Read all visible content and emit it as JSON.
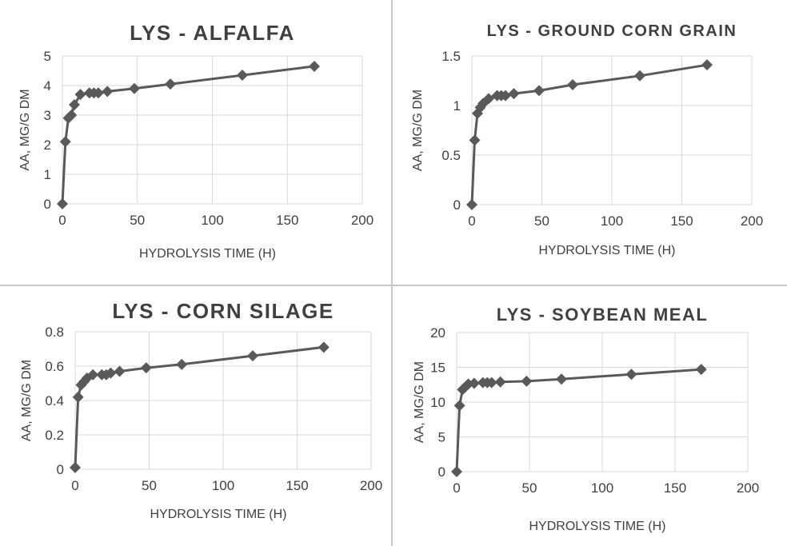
{
  "chart_data": [
    {
      "type": "line",
      "title": "LYS - ALFALFA",
      "xlabel": "HYDROLYSIS TIME (H)",
      "ylabel": "AA, MG/G DM",
      "xlim": [
        0,
        200
      ],
      "ylim": [
        0,
        5
      ],
      "xticks": [
        0,
        50,
        100,
        150,
        200
      ],
      "yticks": [
        0,
        1,
        2,
        3,
        4,
        5
      ],
      "grid": true,
      "series": [
        {
          "x": [
            0,
            2,
            4,
            6,
            8,
            12,
            18,
            21,
            24,
            30,
            48,
            72,
            120,
            168
          ],
          "y": [
            0,
            2.1,
            2.9,
            3.0,
            3.35,
            3.7,
            3.75,
            3.75,
            3.75,
            3.8,
            3.9,
            4.05,
            4.35,
            4.65
          ]
        }
      ]
    },
    {
      "type": "line",
      "title": "LYS - GROUND CORN GRAIN",
      "xlabel": "HYDROLYSIS TIME (H)",
      "ylabel": "AA, MG/G DM",
      "xlim": [
        0,
        200
      ],
      "ylim": [
        0,
        1.5
      ],
      "xticks": [
        0,
        50,
        100,
        150,
        200
      ],
      "yticks": [
        0,
        0.5,
        1,
        1.5
      ],
      "grid": true,
      "series": [
        {
          "x": [
            0,
            2,
            4,
            6,
            8,
            12,
            18,
            21,
            24,
            30,
            48,
            72,
            120,
            168
          ],
          "y": [
            0,
            0.65,
            0.92,
            0.98,
            1.02,
            1.07,
            1.1,
            1.1,
            1.1,
            1.12,
            1.15,
            1.21,
            1.3,
            1.41
          ]
        }
      ]
    },
    {
      "type": "line",
      "title": "LYS - CORN SILAGE",
      "xlabel": "HYDROLYSIS TIME (H)",
      "ylabel": "AA, MG/G DM",
      "xlim": [
        0,
        200
      ],
      "ylim": [
        0,
        0.8
      ],
      "xticks": [
        0,
        50,
        100,
        150,
        200
      ],
      "yticks": [
        0,
        0.2,
        0.4,
        0.6,
        0.8
      ],
      "grid": true,
      "series": [
        {
          "x": [
            0,
            2,
            4,
            6,
            8,
            12,
            18,
            21,
            24,
            30,
            48,
            72,
            120,
            168
          ],
          "y": [
            0.01,
            0.42,
            0.49,
            0.51,
            0.53,
            0.55,
            0.55,
            0.55,
            0.56,
            0.57,
            0.59,
            0.61,
            0.66,
            0.71
          ]
        }
      ]
    },
    {
      "type": "line",
      "title": "LYS - SOYBEAN MEAL",
      "xlabel": "HYDROLYSIS TIME (H)",
      "ylabel": "AA, MG/G DM",
      "xlim": [
        0,
        200
      ],
      "ylim": [
        0,
        20
      ],
      "xticks": [
        0,
        50,
        100,
        150,
        200
      ],
      "yticks": [
        0,
        5,
        10,
        15,
        20
      ],
      "grid": true,
      "series": [
        {
          "x": [
            0,
            2,
            4,
            6,
            8,
            12,
            18,
            21,
            24,
            30,
            48,
            72,
            120,
            168
          ],
          "y": [
            0,
            9.5,
            11.8,
            12.2,
            12.6,
            12.7,
            12.8,
            12.8,
            12.8,
            12.9,
            13.0,
            13.3,
            14.0,
            14.7
          ]
        }
      ]
    }
  ]
}
